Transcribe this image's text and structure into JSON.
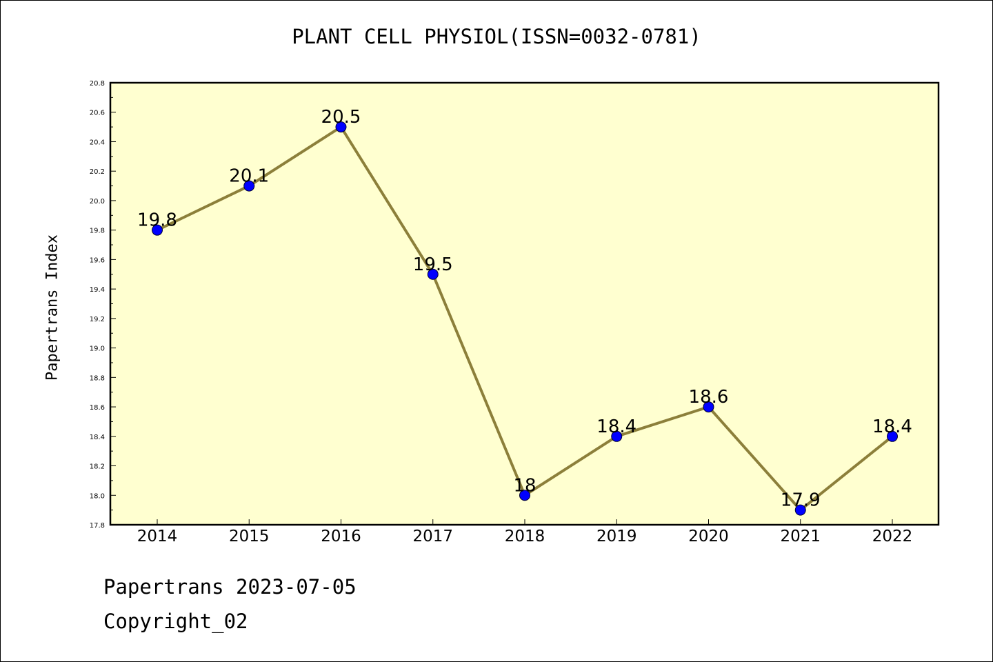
{
  "chart_data": {
    "type": "line",
    "title": "PLANT CELL PHYSIOL(ISSN=0032-0781)",
    "xlabel": "",
    "ylabel": "Papertrans Index",
    "categories": [
      "2014",
      "2015",
      "2016",
      "2017",
      "2018",
      "2019",
      "2020",
      "2021",
      "2022"
    ],
    "values": [
      19.8,
      20.1,
      20.5,
      19.5,
      18.0,
      18.4,
      18.6,
      17.9,
      18.4
    ],
    "data_labels": [
      "19.8",
      "20.1",
      "20.5",
      "19.5",
      "18",
      "18.4",
      "18.6",
      "17.9",
      "18.4"
    ],
    "ylim": [
      17.8,
      20.8
    ],
    "y_ticks": [
      "17.8",
      "18.0",
      "18.2",
      "18.4",
      "18.6",
      "18.8",
      "19.0",
      "19.2",
      "19.4",
      "19.6",
      "19.8",
      "20.0",
      "20.2",
      "20.4",
      "20.6",
      "20.8"
    ],
    "grid": false,
    "legend": "none",
    "colors": {
      "line": "#8c7f3a",
      "marker": "#0000ff",
      "plot_background": "#ffffd0",
      "frame": "#000000"
    }
  },
  "footer": {
    "date_text": "Papertrans 2023-07-05",
    "copyright_text": "Copyright_02"
  }
}
